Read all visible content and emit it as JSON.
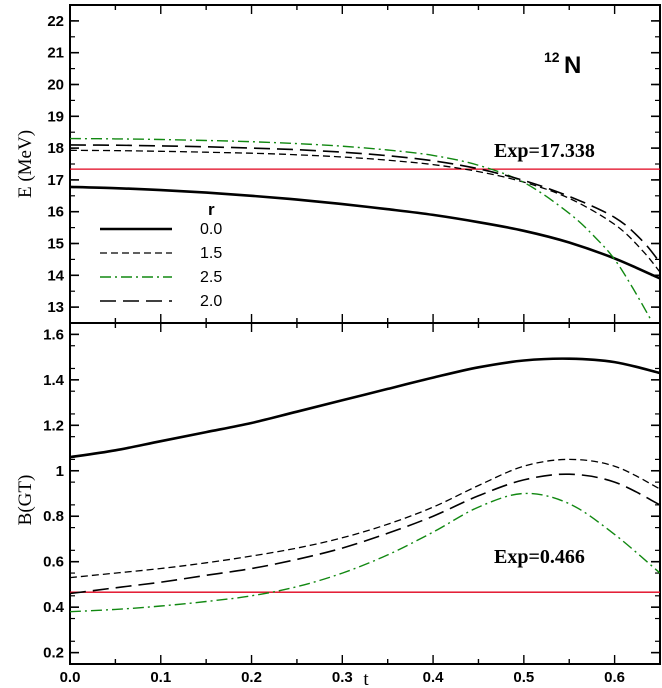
{
  "chart_data": [
    {
      "type": "line",
      "panel": "top",
      "ylabel": "E (MeV)",
      "xlim": [
        0,
        0.65
      ],
      "ylim": [
        12.5,
        22.5
      ],
      "yticks": [
        13,
        14,
        15,
        16,
        17,
        18,
        19,
        20,
        21,
        22
      ],
      "nucleus": {
        "mass": "12",
        "symbol": "N"
      },
      "annotation": "Exp=17.338",
      "reference": {
        "y": 17.338,
        "color": "#e0001b"
      },
      "legend": {
        "title": "r",
        "position": "lower-left"
      },
      "series": [
        {
          "name": "0.0",
          "style": "solid",
          "color": "#000000",
          "x": [
            0,
            0.05,
            0.1,
            0.15,
            0.2,
            0.25,
            0.3,
            0.35,
            0.4,
            0.45,
            0.5,
            0.55,
            0.6,
            0.65
          ],
          "y": [
            16.78,
            16.74,
            16.68,
            16.6,
            16.5,
            16.38,
            16.24,
            16.08,
            15.9,
            15.67,
            15.4,
            15.03,
            14.53,
            13.9
          ]
        },
        {
          "name": "1.5",
          "style": "dashed",
          "color": "#000000",
          "x": [
            0,
            0.05,
            0.1,
            0.15,
            0.2,
            0.25,
            0.3,
            0.35,
            0.4,
            0.45,
            0.5,
            0.55,
            0.6,
            0.63,
            0.65
          ],
          "y": [
            17.93,
            17.92,
            17.9,
            17.87,
            17.84,
            17.79,
            17.72,
            17.62,
            17.48,
            17.26,
            16.93,
            16.42,
            15.6,
            14.8,
            14.1
          ]
        },
        {
          "name": "2.5",
          "style": "dash-dot",
          "color": "#118811",
          "x": [
            0,
            0.05,
            0.1,
            0.15,
            0.2,
            0.25,
            0.3,
            0.35,
            0.4,
            0.45,
            0.5,
            0.55,
            0.58,
            0.6,
            0.62,
            0.64
          ],
          "y": [
            18.3,
            18.29,
            18.27,
            18.24,
            18.2,
            18.14,
            18.06,
            17.94,
            17.77,
            17.46,
            16.92,
            15.95,
            15.15,
            14.5,
            13.6,
            12.6
          ]
        },
        {
          "name": "2.0",
          "style": "long-dash",
          "color": "#000000",
          "x": [
            0,
            0.05,
            0.1,
            0.15,
            0.2,
            0.25,
            0.3,
            0.35,
            0.4,
            0.45,
            0.5,
            0.55,
            0.6,
            0.63,
            0.65
          ],
          "y": [
            18.1,
            18.09,
            18.07,
            18.04,
            18.0,
            17.95,
            17.87,
            17.76,
            17.6,
            17.35,
            16.98,
            16.48,
            15.82,
            15.1,
            14.4
          ]
        }
      ]
    },
    {
      "type": "line",
      "panel": "bottom",
      "xlabel": "t",
      "ylabel": "B(GT)",
      "xlim": [
        0,
        0.65
      ],
      "ylim": [
        0.15,
        1.65
      ],
      "yticks": [
        0.2,
        0.4,
        0.6,
        0.8,
        1.0,
        1.2,
        1.4,
        1.6
      ],
      "xticks": [
        0.0,
        0.1,
        0.2,
        0.3,
        0.4,
        0.5,
        0.6
      ],
      "annotation": "Exp=0.466",
      "reference": {
        "y": 0.466,
        "color": "#e0001b"
      },
      "series": [
        {
          "name": "0.0",
          "style": "solid",
          "color": "#000000",
          "x": [
            0,
            0.05,
            0.1,
            0.15,
            0.2,
            0.25,
            0.3,
            0.35,
            0.4,
            0.45,
            0.5,
            0.55,
            0.6,
            0.65
          ],
          "y": [
            1.06,
            1.09,
            1.13,
            1.17,
            1.21,
            1.26,
            1.31,
            1.36,
            1.41,
            1.455,
            1.485,
            1.493,
            1.478,
            1.43
          ]
        },
        {
          "name": "1.5",
          "style": "dashed",
          "color": "#000000",
          "x": [
            0,
            0.05,
            0.1,
            0.15,
            0.2,
            0.25,
            0.3,
            0.35,
            0.4,
            0.45,
            0.5,
            0.55,
            0.6,
            0.65
          ],
          "y": [
            0.53,
            0.55,
            0.57,
            0.595,
            0.625,
            0.66,
            0.705,
            0.765,
            0.84,
            0.935,
            1.02,
            1.05,
            1.02,
            0.92
          ]
        },
        {
          "name": "2.5",
          "style": "dash-dot",
          "color": "#118811",
          "x": [
            0,
            0.05,
            0.1,
            0.15,
            0.2,
            0.25,
            0.3,
            0.35,
            0.4,
            0.45,
            0.5,
            0.55,
            0.6,
            0.65
          ],
          "y": [
            0.38,
            0.39,
            0.405,
            0.425,
            0.45,
            0.49,
            0.55,
            0.63,
            0.73,
            0.84,
            0.9,
            0.855,
            0.72,
            0.55
          ]
        },
        {
          "name": "2.0",
          "style": "long-dash",
          "color": "#000000",
          "x": [
            0,
            0.05,
            0.1,
            0.15,
            0.2,
            0.25,
            0.3,
            0.35,
            0.4,
            0.45,
            0.5,
            0.55,
            0.6,
            0.65
          ],
          "y": [
            0.46,
            0.485,
            0.51,
            0.54,
            0.57,
            0.61,
            0.66,
            0.725,
            0.8,
            0.89,
            0.96,
            0.985,
            0.95,
            0.85
          ]
        }
      ]
    }
  ]
}
